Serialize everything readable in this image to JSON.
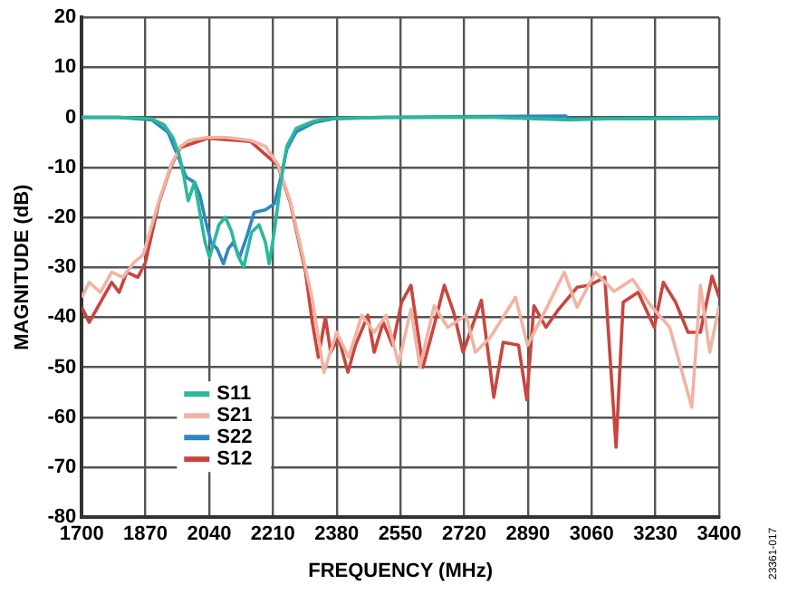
{
  "chart_data": {
    "type": "line",
    "xlabel": "FREQUENCY (MHz)",
    "ylabel": "MAGNITUDE (dB)",
    "annotations": [
      "23361-017"
    ],
    "xlim": [
      1700,
      3400
    ],
    "xticks": [
      1700,
      1870,
      2040,
      2210,
      2380,
      2550,
      2720,
      2890,
      3060,
      3230,
      3400
    ],
    "ylim": [
      -80,
      20
    ],
    "yticks": [
      -80,
      -70,
      -60,
      -50,
      -40,
      -30,
      -20,
      -10,
      0,
      10,
      20
    ],
    "grid": true,
    "legend": "bottom left",
    "marker": "none",
    "line_style": "solid",
    "series": [
      {
        "name": "S11",
        "color": "#2bb89a",
        "x": [
          1700,
          1800,
          1887,
          1920,
          1943,
          1960,
          1973,
          1984,
          2001,
          2029,
          2041,
          2066,
          2083,
          2099,
          2116,
          2132,
          2153,
          2173,
          2190,
          2200,
          2214,
          2231,
          2247,
          2272,
          2321,
          2370,
          2500,
          2800,
          3000,
          3100,
          3400
        ],
        "values": [
          0,
          0,
          -0.3,
          -1.5,
          -4,
          -7.5,
          -12,
          -16.7,
          -13,
          -25,
          -28,
          -21.5,
          -20,
          -22.7,
          -27.5,
          -30,
          -23,
          -21.5,
          -25,
          -29.3,
          -22.7,
          -13,
          -5.8,
          -2.2,
          -0.7,
          -0.2,
          0,
          0,
          -0.5,
          -0.3,
          -0.2
        ]
      },
      {
        "name": "S21",
        "color": "#f0b4a4",
        "x": [
          1700,
          1720,
          1750,
          1780,
          1810,
          1840,
          1864,
          1906,
          1939,
          1964,
          1986,
          2035,
          2085,
          2150,
          2190,
          2223,
          2256,
          2289,
          2314,
          2346,
          2380,
          2412,
          2447,
          2480,
          2512,
          2545,
          2578,
          2602,
          2640,
          2676,
          2725,
          2750,
          2790,
          2857,
          2889,
          2938,
          2987,
          3021,
          3070,
          3120,
          3169,
          3218,
          3268,
          3327,
          3350,
          3375,
          3400
        ],
        "values": [
          -36,
          -33,
          -35,
          -31,
          -32,
          -29,
          -27.5,
          -16.7,
          -9.4,
          -5.8,
          -4.6,
          -4,
          -4,
          -4.6,
          -5.8,
          -9.4,
          -16.7,
          -27.5,
          -36,
          -51,
          -43,
          -48,
          -39.6,
          -43,
          -39.6,
          -49.3,
          -38.4,
          -50,
          -37.7,
          -42,
          -39.6,
          -47,
          -44,
          -36,
          -45.6,
          -38.4,
          -31,
          -38,
          -31,
          -34.8,
          -32.4,
          -37.7,
          -42,
          -58,
          -33.6,
          -47,
          -37.7
        ]
      },
      {
        "name": "S22",
        "color": "#2f86c6",
        "x": [
          1700,
          1800,
          1887,
          1930,
          1952,
          1979,
          2001,
          2015,
          2029,
          2045,
          2061,
          2078,
          2091,
          2104,
          2121,
          2140,
          2160,
          2190,
          2214,
          2231,
          2247,
          2272,
          2321,
          2370,
          2500,
          2990,
          3000,
          3400
        ],
        "values": [
          0,
          0,
          -0.5,
          -3,
          -6.9,
          -12,
          -13,
          -15.5,
          -20.3,
          -25,
          -26.3,
          -29.3,
          -26.3,
          -25,
          -28,
          -23.9,
          -19,
          -18.5,
          -17.3,
          -12,
          -6.4,
          -2.9,
          -1,
          -0.3,
          0,
          0.3,
          -0.3,
          0
        ]
      },
      {
        "name": "S12",
        "color": "#c9453f",
        "x": [
          1700,
          1720,
          1750,
          1780,
          1800,
          1820,
          1850,
          1870,
          1906,
          1939,
          1964,
          2035,
          2150,
          2223,
          2256,
          2297,
          2315,
          2331,
          2350,
          2364,
          2385,
          2410,
          2430,
          2463,
          2480,
          2504,
          2529,
          2553,
          2578,
          2610,
          2642,
          2667,
          2692,
          2717,
          2766,
          2799,
          2824,
          2865,
          2887,
          2906,
          2938,
          2972,
          3021,
          3054,
          3095,
          3125,
          3144,
          3184,
          3227,
          3251,
          3284,
          3317,
          3350,
          3381,
          3400
        ],
        "values": [
          -38,
          -41,
          -37,
          -33,
          -35,
          -31,
          -32,
          -29,
          -17,
          -9.6,
          -6,
          -4.2,
          -4.8,
          -9.6,
          -17,
          -31,
          -41,
          -48,
          -40,
          -47,
          -44,
          -51,
          -45.6,
          -39.6,
          -47,
          -41,
          -45.6,
          -37,
          -33.6,
          -50,
          -41,
          -33.6,
          -39,
          -47,
          -36.6,
          -56,
          -45,
          -45.6,
          -56.5,
          -37.7,
          -42,
          -38.4,
          -34,
          -33.6,
          -32,
          -66,
          -37,
          -35,
          -42,
          -33,
          -37,
          -43,
          -43,
          -31.8,
          -36
        ]
      }
    ]
  }
}
